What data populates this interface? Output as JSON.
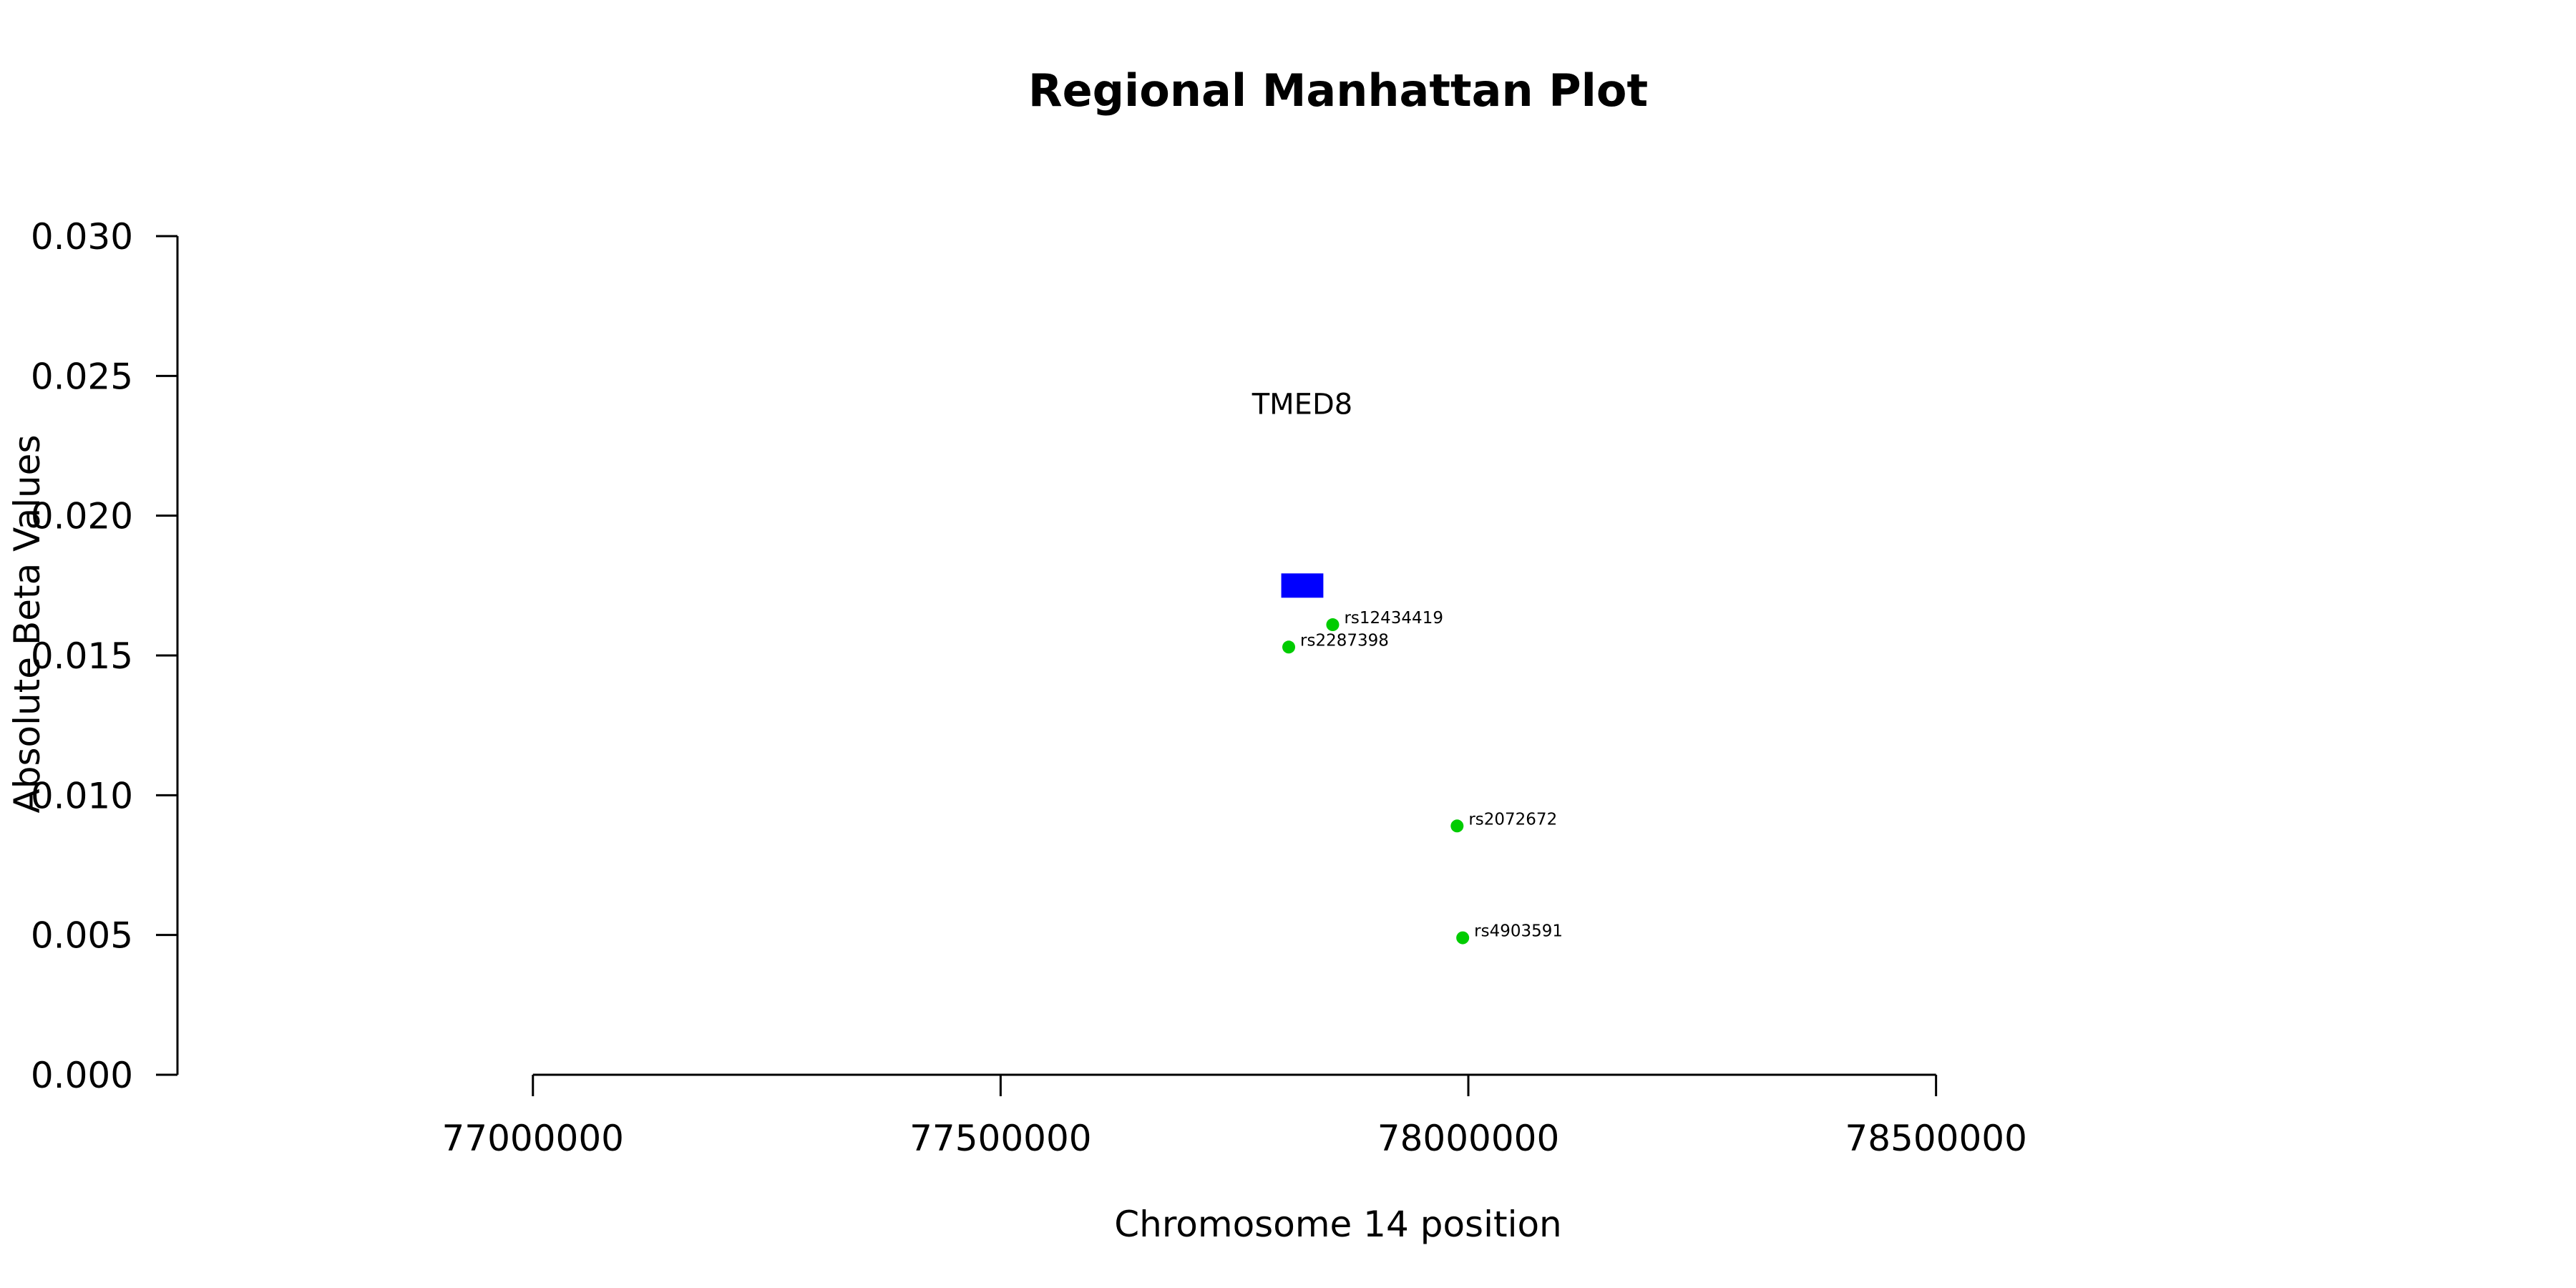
{
  "chart_data": {
    "type": "scatter",
    "title": "Regional Manhattan Plot",
    "xlabel": "Chromosome 14 position",
    "ylabel": "Absolute Beta Values",
    "xlim": [
      76620000,
      79100000
    ],
    "ylim": [
      0,
      0.03
    ],
    "x_ticks": [
      77000000,
      77500000,
      78000000,
      78500000
    ],
    "x_tick_labels": [
      "77000000",
      "77500000",
      "78000000",
      "78500000"
    ],
    "y_ticks": [
      0,
      0.005,
      0.01,
      0.015,
      0.02,
      0.025,
      0.03
    ],
    "y_tick_labels": [
      "0.000",
      "0.005",
      "0.010",
      "0.015",
      "0.020",
      "0.025",
      "0.030"
    ],
    "grid": false,
    "genes": [
      {
        "name": "TMED8",
        "start": 77800000,
        "end": 77845000,
        "y": 0.0175,
        "label_y": 0.024,
        "color": "#0000ff"
      }
    ],
    "snps": [
      {
        "id": "rs12434419",
        "x": 77855000,
        "y": 0.0161
      },
      {
        "id": "rs2287398",
        "x": 77808000,
        "y": 0.0153
      },
      {
        "id": "rs2072672",
        "x": 77988000,
        "y": 0.0089
      },
      {
        "id": "rs4903591",
        "x": 77994000,
        "y": 0.0049
      }
    ],
    "point_color": "#00cc00",
    "gene_color": "#0000ff"
  }
}
